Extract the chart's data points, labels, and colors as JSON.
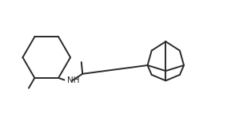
{
  "background_color": "#ffffff",
  "line_color": "#2a2a2a",
  "line_width": 1.4,
  "fig_width": 2.84,
  "fig_height": 1.47,
  "dpi": 100,
  "nh_label": "NH",
  "nh_fontsize": 7.5
}
